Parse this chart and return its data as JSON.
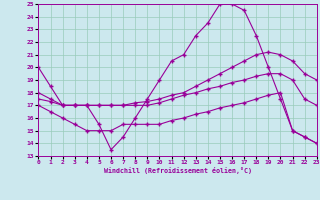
{
  "xlabel": "Windchill (Refroidissement éolien,°C)",
  "bg_color": "#cce8ee",
  "line_color": "#990099",
  "grid_color": "#99ccbb",
  "xmin": 0,
  "xmax": 23,
  "ymin": 13,
  "ymax": 25,
  "s1_y": [
    20.0,
    18.5,
    17.0,
    17.0,
    17.0,
    15.5,
    13.5,
    14.5,
    16.0,
    17.5,
    19.0,
    20.5,
    21.0,
    22.5,
    23.5,
    25.0,
    25.0,
    24.5,
    22.5,
    20.0,
    17.5,
    15.0,
    14.5,
    14.0
  ],
  "s2_y": [
    18.0,
    17.5,
    17.0,
    17.0,
    17.0,
    17.0,
    17.0,
    17.0,
    17.2,
    17.3,
    17.5,
    17.8,
    18.0,
    18.5,
    19.0,
    19.5,
    20.0,
    20.5,
    21.0,
    21.2,
    21.0,
    20.5,
    19.5,
    19.0
  ],
  "s3_y": [
    17.5,
    17.3,
    17.0,
    17.0,
    17.0,
    17.0,
    17.0,
    17.0,
    17.0,
    17.0,
    17.2,
    17.5,
    17.8,
    18.0,
    18.3,
    18.5,
    18.8,
    19.0,
    19.3,
    19.5,
    19.5,
    19.0,
    17.5,
    17.0
  ],
  "s4_y": [
    17.0,
    16.5,
    16.0,
    15.5,
    15.0,
    15.0,
    15.0,
    15.5,
    15.5,
    15.5,
    15.5,
    15.8,
    16.0,
    16.3,
    16.5,
    16.8,
    17.0,
    17.2,
    17.5,
    17.8,
    18.0,
    15.0,
    14.5,
    14.0
  ]
}
